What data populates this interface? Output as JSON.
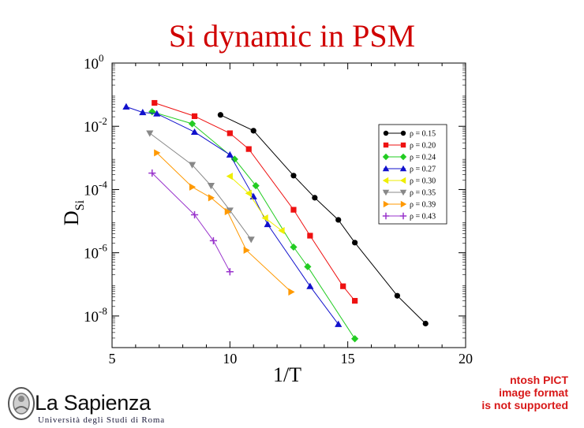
{
  "slide": {
    "title": "Si dynamic in PSM"
  },
  "chart_data": {
    "type": "scatter",
    "title": "",
    "xlabel": "1/T",
    "ylabel": "D",
    "ylabel_sub": "Si",
    "xlim": [
      5,
      20
    ],
    "ylim_log10": [
      -9,
      0
    ],
    "y_scale": "log",
    "x_ticks": [
      "5",
      "10",
      "15",
      "20"
    ],
    "y_ticks": [
      {
        "base": "10",
        "exp": "0"
      },
      {
        "base": "10",
        "exp": "-2"
      },
      {
        "base": "10",
        "exp": "-4"
      },
      {
        "base": "10",
        "exp": "-6"
      },
      {
        "base": "10",
        "exp": "-8"
      }
    ],
    "legend_position": "top-right",
    "series": [
      {
        "name": "ρ = 0.15",
        "color": "#000000",
        "marker": "circle",
        "x": [
          9.6,
          11.0,
          12.7,
          13.6,
          14.6,
          15.3,
          17.1,
          18.3
        ],
        "y_log10": [
          -1.64,
          -2.14,
          -3.56,
          -4.26,
          -4.96,
          -5.68,
          -7.36,
          -8.24
        ]
      },
      {
        "name": "ρ = 0.20",
        "color": "#ee1111",
        "marker": "square",
        "x": [
          6.8,
          8.5,
          10.0,
          10.8,
          12.7,
          13.4,
          14.8,
          15.3
        ],
        "y_log10": [
          -1.26,
          -1.68,
          -2.22,
          -2.72,
          -4.64,
          -5.46,
          -7.06,
          -7.52
        ]
      },
      {
        "name": "ρ = 0.24",
        "color": "#22cc22",
        "marker": "diamond",
        "x": [
          6.7,
          8.4,
          10.2,
          11.1,
          12.7,
          13.3,
          15.3
        ],
        "y_log10": [
          -1.54,
          -1.92,
          -3.04,
          -3.88,
          -5.82,
          -6.44,
          -8.72
        ]
      },
      {
        "name": "ρ = 0.27",
        "color": "#1111cc",
        "marker": "triangle-up",
        "x": [
          5.6,
          6.3,
          6.9,
          8.5,
          10.0,
          11.0,
          11.6,
          13.4,
          14.6
        ],
        "y_log10": [
          -1.38,
          -1.56,
          -1.6,
          -2.18,
          -2.9,
          -4.22,
          -5.1,
          -7.06,
          -8.26
        ]
      },
      {
        "name": "ρ = 0.30",
        "color": "#eeee00",
        "marker": "triangle-left",
        "x": [
          10.0,
          10.8,
          11.5,
          12.2
        ],
        "y_log10": [
          -3.58,
          -4.12,
          -4.9,
          -5.3
        ]
      },
      {
        "name": "ρ = 0.35",
        "color": "#888888",
        "marker": "triangle-down",
        "x": [
          6.6,
          8.4,
          9.2,
          10.0,
          10.9
        ],
        "y_log10": [
          -2.22,
          -3.22,
          -3.88,
          -4.66,
          -5.58
        ]
      },
      {
        "name": "ρ = 0.39",
        "color": "#ff9900",
        "marker": "triangle-right",
        "x": [
          6.9,
          8.4,
          9.2,
          9.9,
          10.7,
          12.6
        ],
        "y_log10": [
          -2.84,
          -3.92,
          -4.26,
          -4.7,
          -5.92,
          -7.24
        ]
      },
      {
        "name": "ρ = 0.43",
        "color": "#9933cc",
        "marker": "plus",
        "x": [
          6.7,
          8.5,
          9.3,
          10.0
        ],
        "y_log10": [
          -3.48,
          -4.8,
          -5.62,
          -6.6
        ]
      }
    ]
  },
  "logo": {
    "name": "La Sapienza",
    "subtitle": "Università degli Studi di Roma"
  },
  "pict_notice": {
    "lines": [
      "ntosh PICT",
      "image format",
      "is not supported"
    ]
  }
}
